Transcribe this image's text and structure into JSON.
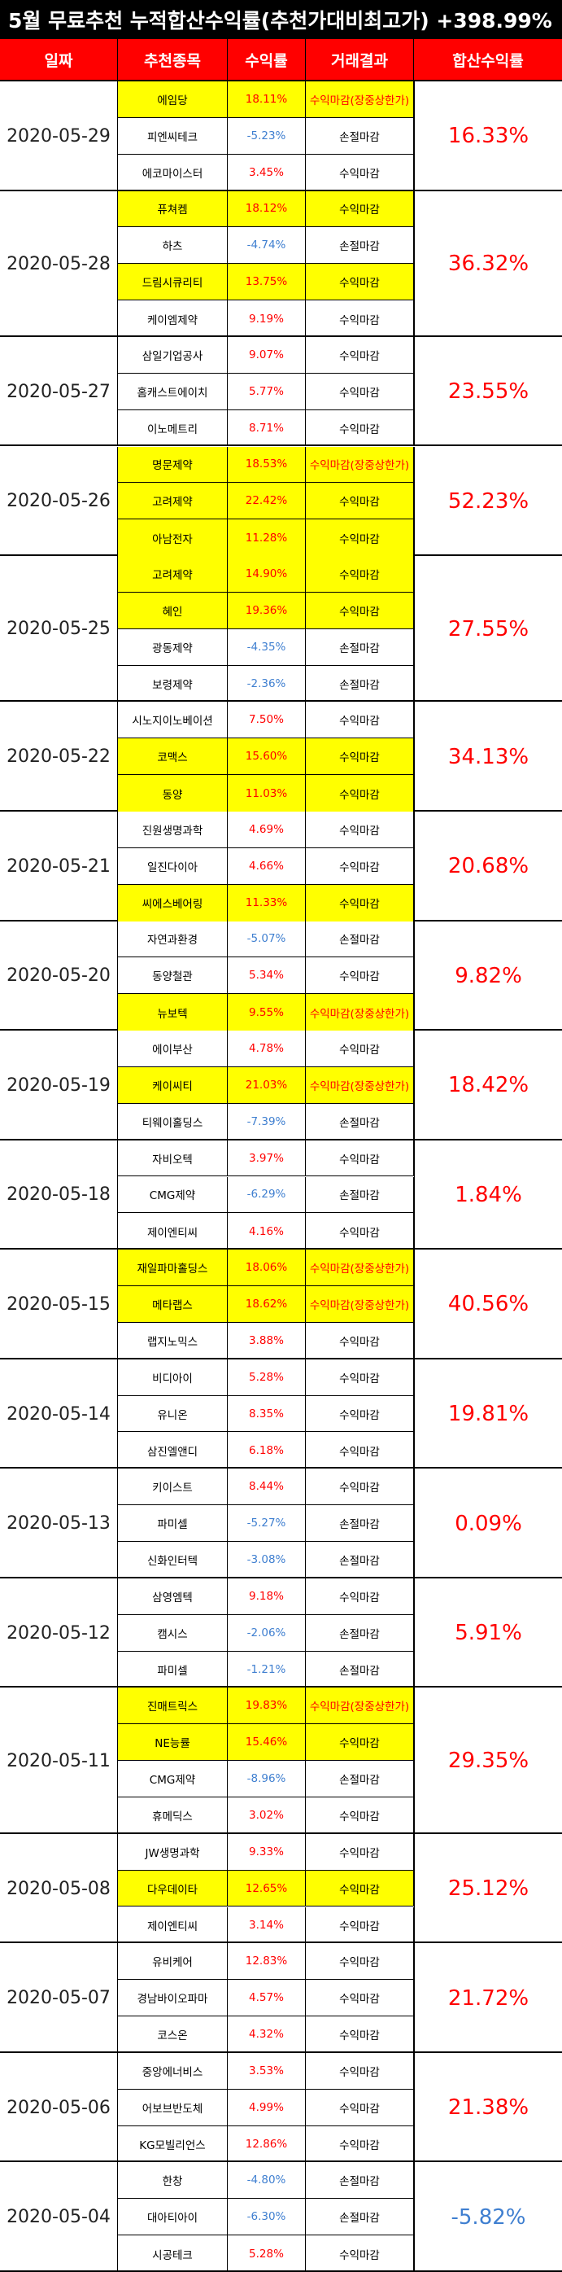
{
  "title": "5월 무료추천 누적합산수익률(추천가대비최고가) +398.99%",
  "headers": {
    "date": "일짜",
    "stock": "추천종목",
    "return": "수익률",
    "result": "거래결과",
    "total": "합산수익률"
  },
  "colors": {
    "header_bg": "#ff0000",
    "title_bg": "#000000",
    "highlight": "#ffff00",
    "positive": "#ff0000",
    "negative": "#3f7fd0"
  },
  "groups": [
    {
      "date": "2020-05-29",
      "total": "16.33%",
      "rows": [
        {
          "name": "에임당",
          "pct": "18.11%",
          "result": "수익마감(장중상한가)",
          "hl": true
        },
        {
          "name": "피엔씨테크",
          "pct": "-5.23%",
          "result": "손절마감",
          "hl": false
        },
        {
          "name": "에코마이스터",
          "pct": "3.45%",
          "result": "수익마감",
          "hl": false
        }
      ]
    },
    {
      "date": "2020-05-28",
      "total": "36.32%",
      "rows": [
        {
          "name": "퓨쳐켐",
          "pct": "18.12%",
          "result": "수익마감",
          "hl": true
        },
        {
          "name": "하츠",
          "pct": "-4.74%",
          "result": "손절마감",
          "hl": false
        },
        {
          "name": "드림시큐리티",
          "pct": "13.75%",
          "result": "수익마감",
          "hl": true
        },
        {
          "name": "케이엠제약",
          "pct": "9.19%",
          "result": "수익마감",
          "hl": false
        }
      ]
    },
    {
      "date": "2020-05-27",
      "total": "23.55%",
      "rows": [
        {
          "name": "삼일기업공사",
          "pct": "9.07%",
          "result": "수익마감",
          "hl": false
        },
        {
          "name": "홈캐스트에이치",
          "pct": "5.77%",
          "result": "수익마감",
          "hl": false
        },
        {
          "name": "이노메트리",
          "pct": "8.71%",
          "result": "수익마감",
          "hl": false
        }
      ]
    },
    {
      "date": "2020-05-26",
      "total": "52.23%",
      "rows": [
        {
          "name": "명문제약",
          "pct": "18.53%",
          "result": "수익마감(장중상한가)",
          "hl": true
        },
        {
          "name": "고려제약",
          "pct": "22.42%",
          "result": "수익마감",
          "hl": true
        },
        {
          "name": "아남전자",
          "pct": "11.28%",
          "result": "수익마감",
          "hl": true
        }
      ]
    },
    {
      "date": "2020-05-25",
      "total": "27.55%",
      "rows": [
        {
          "name": "고려제약",
          "pct": "14.90%",
          "result": "수익마감",
          "hl": true
        },
        {
          "name": "혜인",
          "pct": "19.36%",
          "result": "수익마감",
          "hl": true
        },
        {
          "name": "광동제약",
          "pct": "-4.35%",
          "result": "손절마감",
          "hl": false
        },
        {
          "name": "보령제약",
          "pct": "-2.36%",
          "result": "손절마감",
          "hl": false
        }
      ]
    },
    {
      "date": "2020-05-22",
      "total": "34.13%",
      "rows": [
        {
          "name": "시노지이노베이션",
          "pct": "7.50%",
          "result": "수익마감",
          "hl": false
        },
        {
          "name": "코맥스",
          "pct": "15.60%",
          "result": "수익마감",
          "hl": true
        },
        {
          "name": "동양",
          "pct": "11.03%",
          "result": "수익마감",
          "hl": true
        }
      ]
    },
    {
      "date": "2020-05-21",
      "total": "20.68%",
      "rows": [
        {
          "name": "진원생명과학",
          "pct": "4.69%",
          "result": "수익마감",
          "hl": false
        },
        {
          "name": "일진다이아",
          "pct": "4.66%",
          "result": "수익마감",
          "hl": false
        },
        {
          "name": "씨에스베어링",
          "pct": "11.33%",
          "result": "수익마감",
          "hl": true
        }
      ]
    },
    {
      "date": "2020-05-20",
      "total": "9.82%",
      "rows": [
        {
          "name": "자연과환경",
          "pct": "-5.07%",
          "result": "손절마감",
          "hl": false
        },
        {
          "name": "동양철관",
          "pct": "5.34%",
          "result": "수익마감",
          "hl": false
        },
        {
          "name": "뉴보텍",
          "pct": "9.55%",
          "result": "수익마감(장중상한가)",
          "hl": true
        }
      ]
    },
    {
      "date": "2020-05-19",
      "total": "18.42%",
      "rows": [
        {
          "name": "에이부산",
          "pct": "4.78%",
          "result": "수익마감",
          "hl": false
        },
        {
          "name": "케이씨티",
          "pct": "21.03%",
          "result": "수익마감(장중상한가)",
          "hl": true
        },
        {
          "name": "티웨이홀딩스",
          "pct": "-7.39%",
          "result": "손절마감",
          "hl": false
        }
      ]
    },
    {
      "date": "2020-05-18",
      "total": "1.84%",
      "rows": [
        {
          "name": "자비오텍",
          "pct": "3.97%",
          "result": "수익마감",
          "hl": false
        },
        {
          "name": "CMG제약",
          "pct": "-6.29%",
          "result": "손절마감",
          "hl": false
        },
        {
          "name": "제이엔티씨",
          "pct": "4.16%",
          "result": "수익마감",
          "hl": false
        }
      ]
    },
    {
      "date": "2020-05-15",
      "total": "40.56%",
      "rows": [
        {
          "name": "재일파마홀딩스",
          "pct": "18.06%",
          "result": "수익마감(장중상한가)",
          "hl": true
        },
        {
          "name": "메타랩스",
          "pct": "18.62%",
          "result": "수익마감(장중상한가)",
          "hl": true
        },
        {
          "name": "랩지노믹스",
          "pct": "3.88%",
          "result": "수익마감",
          "hl": false
        }
      ]
    },
    {
      "date": "2020-05-14",
      "total": "19.81%",
      "rows": [
        {
          "name": "비디아이",
          "pct": "5.28%",
          "result": "수익마감",
          "hl": false
        },
        {
          "name": "유니온",
          "pct": "8.35%",
          "result": "수익마감",
          "hl": false
        },
        {
          "name": "삼진엘앤디",
          "pct": "6.18%",
          "result": "수익마감",
          "hl": false
        }
      ]
    },
    {
      "date": "2020-05-13",
      "total": "0.09%",
      "rows": [
        {
          "name": "키이스트",
          "pct": "8.44%",
          "result": "수익마감",
          "hl": false
        },
        {
          "name": "파미셀",
          "pct": "-5.27%",
          "result": "손절마감",
          "hl": false
        },
        {
          "name": "신화인터텍",
          "pct": "-3.08%",
          "result": "손절마감",
          "hl": false
        }
      ]
    },
    {
      "date": "2020-05-12",
      "total": "5.91%",
      "rows": [
        {
          "name": "삼영엠텍",
          "pct": "9.18%",
          "result": "수익마감",
          "hl": false
        },
        {
          "name": "캠시스",
          "pct": "-2.06%",
          "result": "손절마감",
          "hl": false
        },
        {
          "name": "파미셀",
          "pct": "-1.21%",
          "result": "손절마감",
          "hl": false
        }
      ]
    },
    {
      "date": "2020-05-11",
      "total": "29.35%",
      "rows": [
        {
          "name": "진매트릭스",
          "pct": "19.83%",
          "result": "수익마감(장중상한가)",
          "hl": true
        },
        {
          "name": "NE능률",
          "pct": "15.46%",
          "result": "수익마감",
          "hl": true
        },
        {
          "name": "CMG제약",
          "pct": "-8.96%",
          "result": "손절마감",
          "hl": false
        },
        {
          "name": "휴메딕스",
          "pct": "3.02%",
          "result": "수익마감",
          "hl": false
        }
      ]
    },
    {
      "date": "2020-05-08",
      "total": "25.12%",
      "rows": [
        {
          "name": "JW생명과학",
          "pct": "9.33%",
          "result": "수익마감",
          "hl": false
        },
        {
          "name": "다우데이타",
          "pct": "12.65%",
          "result": "수익마감",
          "hl": true
        },
        {
          "name": "제이엔티씨",
          "pct": "3.14%",
          "result": "수익마감",
          "hl": false
        }
      ]
    },
    {
      "date": "2020-05-07",
      "total": "21.72%",
      "rows": [
        {
          "name": "유비케어",
          "pct": "12.83%",
          "result": "수익마감",
          "hl": false
        },
        {
          "name": "경남바이오파마",
          "pct": "4.57%",
          "result": "수익마감",
          "hl": false
        },
        {
          "name": "코스온",
          "pct": "4.32%",
          "result": "수익마감",
          "hl": false
        }
      ]
    },
    {
      "date": "2020-05-06",
      "total": "21.38%",
      "rows": [
        {
          "name": "중앙에너비스",
          "pct": "3.53%",
          "result": "수익마감",
          "hl": false
        },
        {
          "name": "어보브반도체",
          "pct": "4.99%",
          "result": "수익마감",
          "hl": false
        },
        {
          "name": "KG모빌리언스",
          "pct": "12.86%",
          "result": "수익마감",
          "hl": false
        }
      ]
    },
    {
      "date": "2020-05-04",
      "total": "-5.82%",
      "rows": [
        {
          "name": "한창",
          "pct": "-4.80%",
          "result": "손절마감",
          "hl": false
        },
        {
          "name": "대아티아이",
          "pct": "-6.30%",
          "result": "손절마감",
          "hl": false
        },
        {
          "name": "시공테크",
          "pct": "5.28%",
          "result": "수익마감",
          "hl": false
        }
      ]
    }
  ]
}
